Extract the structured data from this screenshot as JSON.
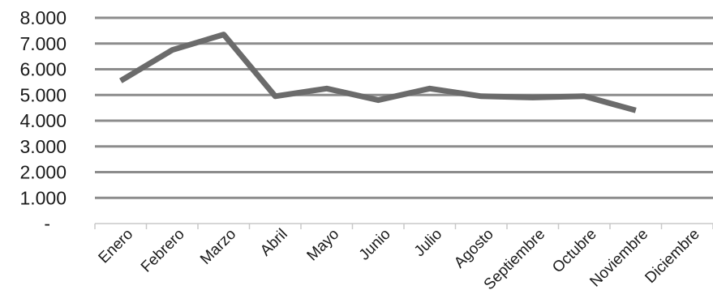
{
  "chart_data": {
    "type": "line",
    "categories": [
      "Enero",
      "Febrero",
      "Marzo",
      "Abril",
      "Mayo",
      "Junio",
      "Julio",
      "Agosto",
      "Septiembre",
      "Octubre",
      "Noviembre",
      "Diciembre"
    ],
    "series": [
      {
        "values": [
          5550,
          6750,
          7350,
          4950,
          5250,
          4800,
          5250,
          4950,
          4900,
          4950,
          4400,
          null
        ],
        "color": "#6b6b6b"
      }
    ],
    "y_tick_labels": [
      "-",
      "1.000",
      "2.000",
      "3.000",
      "4.000",
      "5.000",
      "6.000",
      "7.000",
      "8.000"
    ],
    "ylim": [
      0,
      8000
    ],
    "grid": true,
    "legend": "none"
  }
}
